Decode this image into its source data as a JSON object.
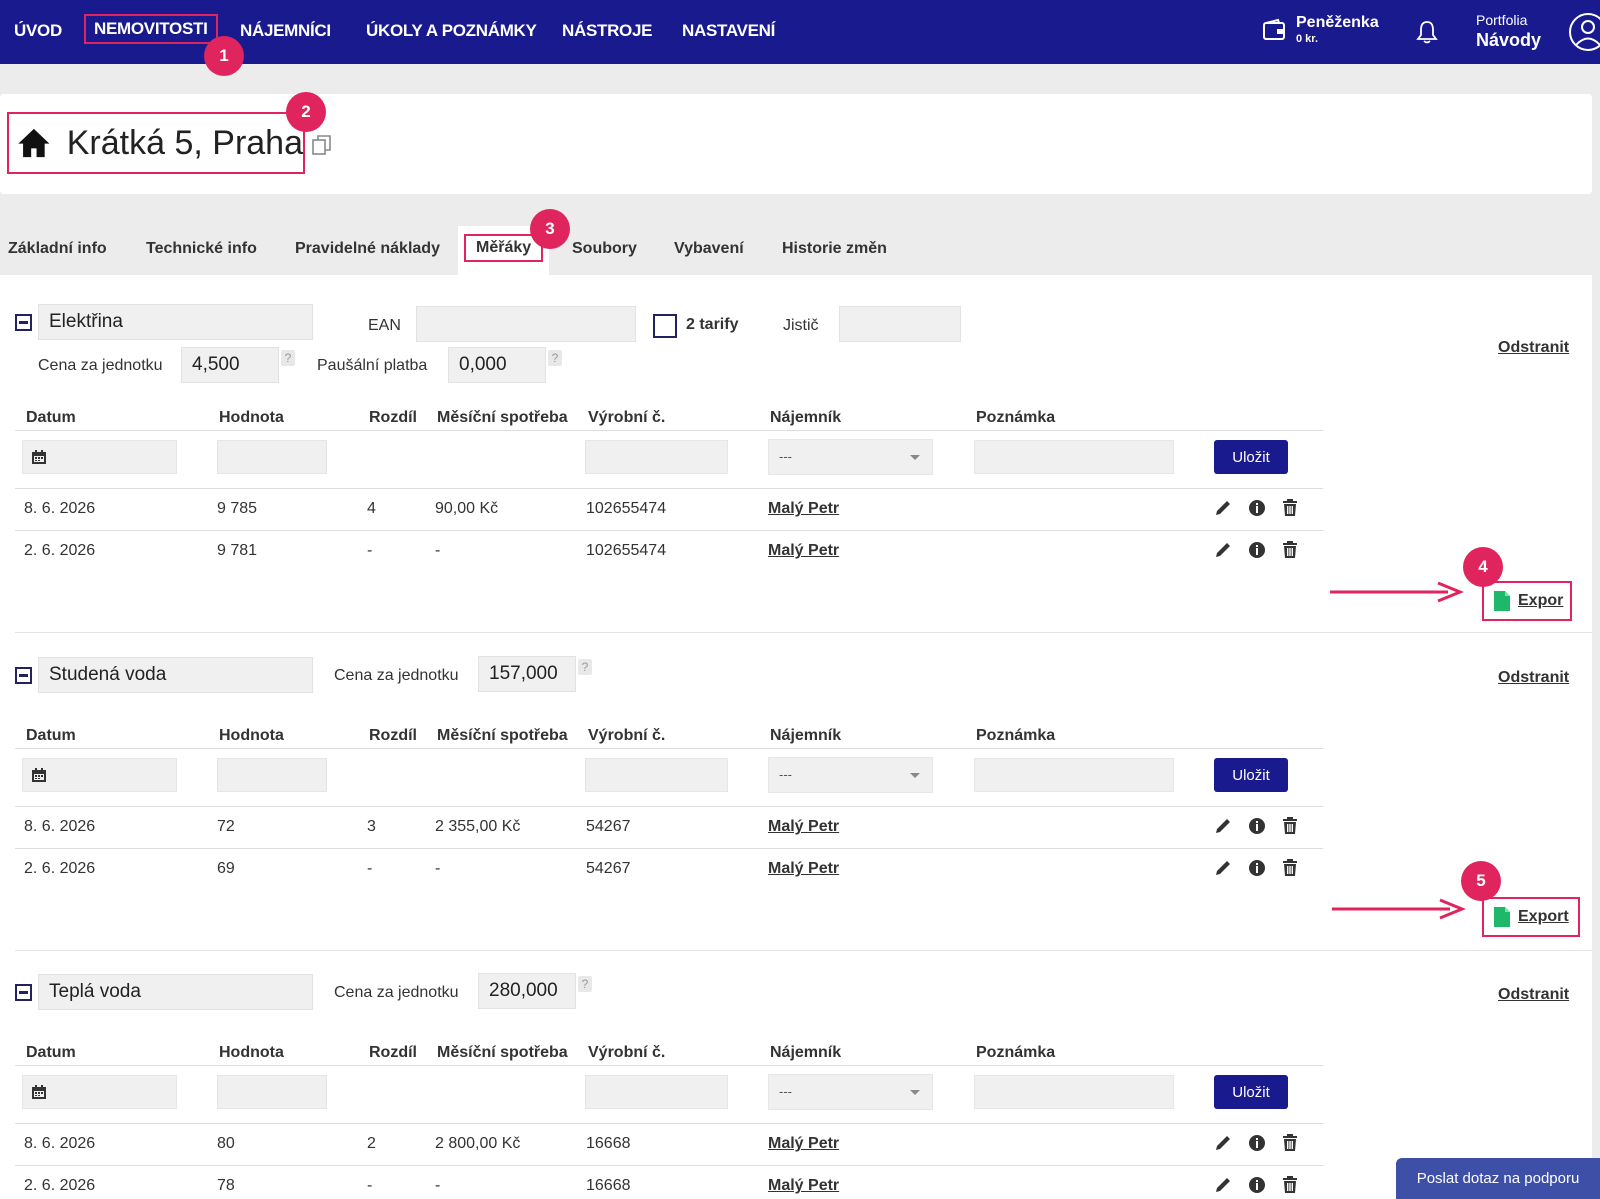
{
  "nav": {
    "items": [
      "ÚVOD",
      "NEMOVITOSTI",
      "NÁJEMNÍCI",
      "ÚKOLY A POZNÁMKY",
      "NÁSTROJE",
      "NASTAVENÍ"
    ],
    "wallet_title": "Peněženka",
    "wallet_value": "0 kr.",
    "portfolio_label": "Portfolia",
    "portfolio_name": "Návody"
  },
  "badges": [
    "1",
    "2",
    "3",
    "4",
    "5"
  ],
  "property": {
    "title": "Krátká 5, Praha"
  },
  "tabs": [
    "Základní info",
    "Technické info",
    "Pravidelné náklady",
    "Měřáky",
    "Soubory",
    "Vybavení",
    "Historie změn"
  ],
  "table_headers": [
    "Datum",
    "Hodnota",
    "Rozdíl",
    "Měsíční spotřeba",
    "Výrobní č.",
    "Nájemník",
    "Poznámka"
  ],
  "common": {
    "save_label": "Uložit",
    "remove_label": "Odstranit",
    "export_label": "Export",
    "tenant_placeholder": "---",
    "help_mark": "?",
    "unit_price_label": "Cena za jednotku"
  },
  "meters": [
    {
      "name": "Elektřina",
      "ean_label": "EAN",
      "tariff_label": "2 tarify",
      "breaker_label": "Jistič",
      "unit_price": "4,500",
      "flat_fee_label": "Paušální platba",
      "flat_fee": "0,000",
      "export_label": "Expor",
      "rows": [
        {
          "date": "8. 6. 2026",
          "value": "9 785",
          "diff": "4",
          "monthly": "90,00 Kč",
          "serial": "102655474",
          "tenant": "Malý Petr"
        },
        {
          "date": "2. 6. 2026",
          "value": "9 781",
          "diff": "-",
          "monthly": "-",
          "serial": "102655474",
          "tenant": "Malý Petr"
        }
      ]
    },
    {
      "name": "Studená voda",
      "unit_price": "157,000",
      "rows": [
        {
          "date": "8. 6. 2026",
          "value": "72",
          "diff": "3",
          "monthly": "2 355,00 Kč",
          "serial": "54267",
          "tenant": "Malý Petr"
        },
        {
          "date": "2. 6. 2026",
          "value": "69",
          "diff": "-",
          "monthly": "-",
          "serial": "54267",
          "tenant": "Malý Petr"
        }
      ]
    },
    {
      "name": "Teplá voda",
      "unit_price": "280,000",
      "rows": [
        {
          "date": "8. 6. 2026",
          "value": "80",
          "diff": "2",
          "monthly": "2 800,00 Kč",
          "serial": "16668",
          "tenant": "Malý Petr"
        },
        {
          "date": "2. 6. 2026",
          "value": "78",
          "diff": "-",
          "monthly": "-",
          "serial": "16668",
          "tenant": "Malý Petr"
        }
      ]
    }
  ],
  "support_label": "Poslat dotaz na podporu",
  "colors": {
    "nav_bg": "#181a8e",
    "highlight": "#e0245e",
    "button": "#181a8e",
    "support": "#3e4fa8"
  }
}
